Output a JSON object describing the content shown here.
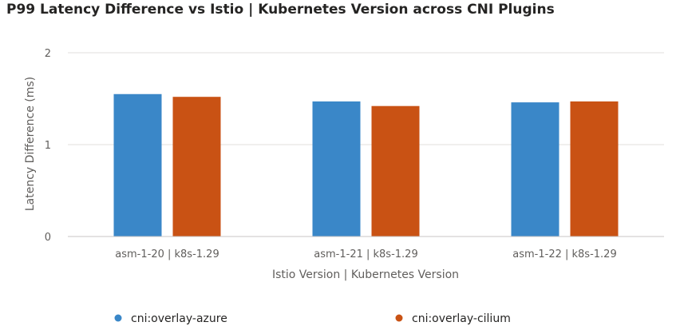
{
  "chart_data": {
    "type": "bar",
    "title": "P99 Latency Difference vs Istio | Kubernetes Version across CNI Plugins",
    "xlabel": "Istio Version | Kubernetes Version",
    "ylabel": "Latency Difference (ms)",
    "categories": [
      "asm-1-20 | k8s-1.29",
      "asm-1-21 | k8s-1.29",
      "asm-1-22 | k8s-1.29"
    ],
    "series": [
      {
        "name": "cni:overlay-azure",
        "color": "#3a87c8",
        "values": [
          1.55,
          1.47,
          1.46
        ]
      },
      {
        "name": "cni:overlay-cilium",
        "color": "#c95214",
        "values": [
          1.52,
          1.42,
          1.47
        ]
      }
    ],
    "ylim": [
      0,
      2
    ],
    "yticks": [
      "0",
      "1",
      "2"
    ],
    "grid": true,
    "legend_position": "bottom"
  }
}
